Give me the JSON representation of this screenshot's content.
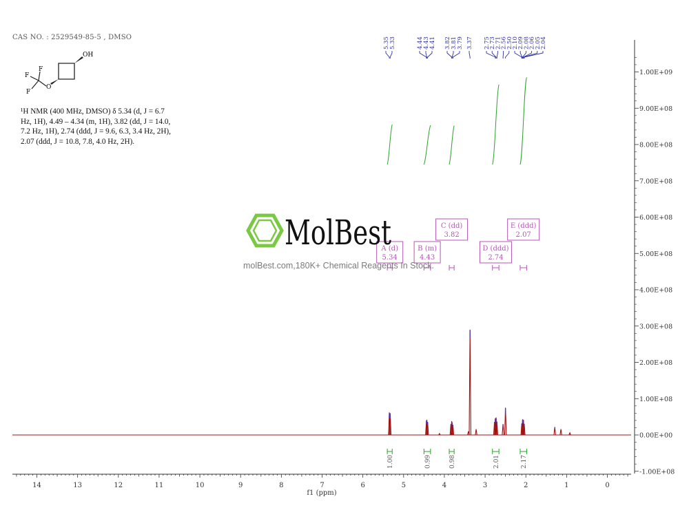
{
  "header": {
    "cas_text": "CAS NO. : 2529549-85-5 , DMSO"
  },
  "compound": {
    "labels": {
      "oh": "OH",
      "f_top": "F",
      "f_left": "F",
      "f_bottom": "F",
      "o": "O"
    }
  },
  "nmr_description": {
    "lines": [
      "¹H NMR (400 MHz, DMSO) δ 5.34 (d, J = 6.7",
      "Hz, 1H), 4.49 – 4.34 (m, 1H), 3.82 (dd, J = 14.0,",
      "7.2 Hz, 1H), 2.74 (ddd, J = 9.6, 6.3, 3.4 Hz, 2H),",
      "2.07 (ddd, J = 10.8, 7.8, 4.0 Hz, 2H)."
    ]
  },
  "watermark": {
    "brand": "MolBest",
    "tagline": "molBest.com,180K+ Chemical Reagents In Stock."
  },
  "colors": {
    "spectrum": "#a01010",
    "integral": "#2ca02c",
    "peak_labels": "#2b2fa0",
    "multiplet_box": "#b455b4",
    "axis": "#333333"
  },
  "chart_data": {
    "type": "line",
    "title": "",
    "xlabel": "f1 (ppm)",
    "xlim": [
      14.6,
      -0.6
    ],
    "x_reversed": true,
    "x_ticks": [
      14,
      13,
      12,
      11,
      10,
      9,
      8,
      7,
      6,
      5,
      4,
      3,
      2,
      1,
      0
    ],
    "ylim": [
      -100000000.0,
      1050000000.0
    ],
    "y_axis_position": "right",
    "y_ticks": [
      {
        "value": -100000000.0,
        "label": "-1.00E+08"
      },
      {
        "value": 0,
        "label": "0.00E+00"
      },
      {
        "value": 100000000.0,
        "label": "1.00E+08"
      },
      {
        "value": 200000000.0,
        "label": "2.00E+08"
      },
      {
        "value": 300000000.0,
        "label": "3.00E+08"
      },
      {
        "value": 400000000.0,
        "label": "4.00E+08"
      },
      {
        "value": 500000000.0,
        "label": "5.00E+08"
      },
      {
        "value": 600000000.0,
        "label": "6.00E+08"
      },
      {
        "value": 700000000.0,
        "label": "7.00E+08"
      },
      {
        "value": 800000000.0,
        "label": "8.00E+08"
      },
      {
        "value": 900000000.0,
        "label": "9.00E+08"
      },
      {
        "value": 1000000000.0,
        "label": "1.00E+09"
      }
    ],
    "peaks": [
      {
        "ppm": 5.35,
        "height": 62000000.0
      },
      {
        "ppm": 5.33,
        "height": 60000000.0
      },
      {
        "ppm": 4.44,
        "height": 40000000.0
      },
      {
        "ppm": 4.43,
        "height": 42000000.0
      },
      {
        "ppm": 4.41,
        "height": 36000000.0
      },
      {
        "ppm": 4.12,
        "height": 4000000.0
      },
      {
        "ppm": 3.84,
        "height": 30000000.0
      },
      {
        "ppm": 3.82,
        "height": 38000000.0
      },
      {
        "ppm": 3.81,
        "height": 35000000.0
      },
      {
        "ppm": 3.79,
        "height": 28000000.0
      },
      {
        "ppm": 3.41,
        "height": 10000000.0
      },
      {
        "ppm": 3.37,
        "height": 290000000.0
      },
      {
        "ppm": 3.22,
        "height": 16000000.0
      },
      {
        "ppm": 2.77,
        "height": 36000000.0
      },
      {
        "ppm": 2.75,
        "height": 46000000.0
      },
      {
        "ppm": 2.73,
        "height": 48000000.0
      },
      {
        "ppm": 2.71,
        "height": 37000000.0
      },
      {
        "ppm": 2.56,
        "height": 30000000.0
      },
      {
        "ppm": 2.5,
        "height": 75000000.0
      },
      {
        "ppm": 2.1,
        "height": 32000000.0
      },
      {
        "ppm": 2.08,
        "height": 43000000.0
      },
      {
        "ppm": 2.06,
        "height": 42000000.0
      },
      {
        "ppm": 2.04,
        "height": 31000000.0
      },
      {
        "ppm": 1.29,
        "height": 22000000.0
      },
      {
        "ppm": 1.14,
        "height": 16000000.0
      },
      {
        "ppm": 0.92,
        "height": 6000000.0
      }
    ],
    "peak_labels": {
      "groups": [
        {
          "labels": [
            "5.35",
            "5.33"
          ],
          "ppm": [
            5.35,
            5.33
          ]
        },
        {
          "labels": [
            "4.44",
            "4.43",
            "4.41"
          ],
          "ppm": [
            4.44,
            4.43,
            4.41
          ]
        },
        {
          "labels": [
            "3.82",
            "3.81",
            "3.79"
          ],
          "ppm": [
            3.82,
            3.81,
            3.79
          ]
        },
        {
          "labels": [
            "3.37"
          ],
          "ppm": [
            3.37
          ]
        },
        {
          "labels": [
            "2.75",
            "2.73",
            "2.71",
            "2.56",
            "2.50",
            "2.10",
            "2.09",
            "2.08",
            "2.06",
            "2.05",
            "2.04"
          ],
          "ppm": [
            2.75,
            2.73,
            2.71,
            2.56,
            2.5,
            2.1,
            2.09,
            2.08,
            2.06,
            2.05,
            2.04
          ]
        }
      ]
    },
    "integrals": [
      {
        "from": 5.4,
        "to": 5.28,
        "value": "1.00",
        "curve_bottom": 745000000.0,
        "curve_top": 855000000.0
      },
      {
        "from": 4.5,
        "to": 4.34,
        "value": "0.99",
        "curve_bottom": 745000000.0,
        "curve_top": 853000000.0
      },
      {
        "from": 3.88,
        "to": 3.76,
        "value": "0.98",
        "curve_bottom": 745000000.0,
        "curve_top": 852000000.0
      },
      {
        "from": 2.82,
        "to": 2.66,
        "value": "2.01",
        "curve_bottom": 745000000.0,
        "curve_top": 965000000.0
      },
      {
        "from": 2.14,
        "to": 1.98,
        "value": "2.17",
        "curve_bottom": 745000000.0,
        "curve_top": 985000000.0
      }
    ],
    "multiplets": [
      {
        "letter": "A",
        "mult": "(d)",
        "shift": "5.34",
        "range": [
          5.4,
          5.28
        ],
        "level": "lower"
      },
      {
        "letter": "B",
        "mult": "(m)",
        "shift": "4.43",
        "range": [
          4.5,
          4.34
        ],
        "level": "lower"
      },
      {
        "letter": "C",
        "mult": "(dd)",
        "shift": "3.82",
        "range": [
          3.88,
          3.76
        ],
        "level": "upper"
      },
      {
        "letter": "D",
        "mult": "(ddd)",
        "shift": "2.74",
        "range": [
          2.82,
          2.66
        ],
        "level": "lower"
      },
      {
        "letter": "E",
        "mult": "(ddd)",
        "shift": "2.07",
        "range": [
          2.14,
          1.98
        ],
        "level": "upper"
      }
    ]
  }
}
